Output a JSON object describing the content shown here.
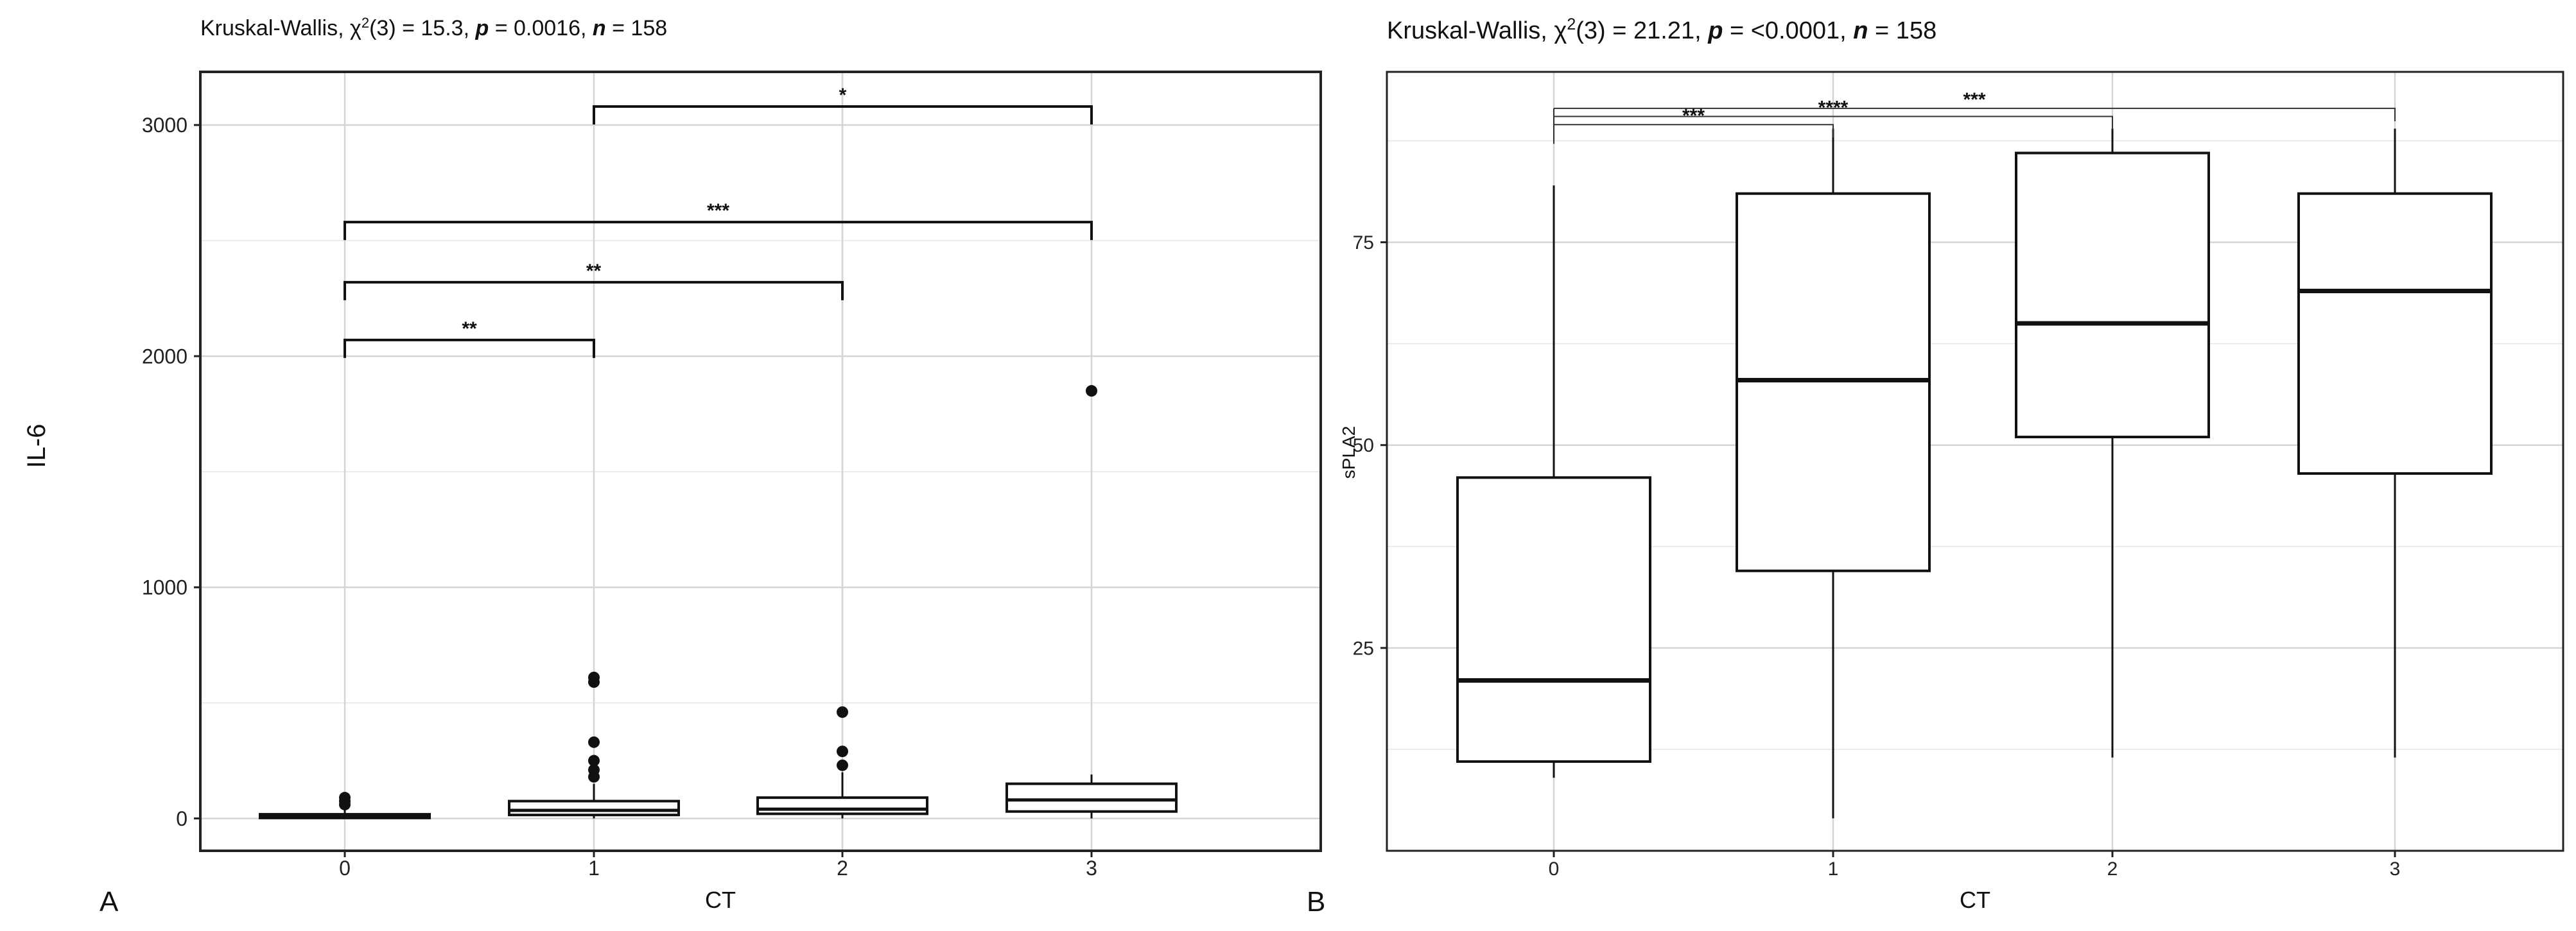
{
  "chart_data": [
    {
      "type": "box",
      "panel_label": "A",
      "title": {
        "prefix": "Kruskal-Wallis, χ",
        "sup": "2",
        "middle": "(3) = 15.3, ",
        "p_sym": "p",
        "p_val": " = 0.0016, ",
        "n_sym": "n",
        "n_val": " = 158"
      },
      "xlabel": "CT",
      "ylabel": "IL-6",
      "categories": [
        "0",
        "1",
        "2",
        "3"
      ],
      "ylim": [
        -140,
        3230
      ],
      "yticks": [
        0,
        1000,
        2000,
        3000
      ],
      "yticklabels": [
        "0",
        "1000",
        "2000",
        "3000"
      ],
      "grid": true,
      "boxes": [
        {
          "category": "0",
          "min": 0,
          "q1": 2,
          "median": 8,
          "q3": 18,
          "max": 40,
          "outliers": [
            60,
            75,
            90
          ]
        },
        {
          "category": "1",
          "min": 0,
          "q1": 15,
          "median": 35,
          "q3": 75,
          "max": 150,
          "outliers": [
            180,
            210,
            250,
            330,
            590,
            610
          ]
        },
        {
          "category": "2",
          "min": 0,
          "q1": 20,
          "median": 40,
          "q3": 90,
          "max": 200,
          "outliers": [
            230,
            290,
            460
          ]
        },
        {
          "category": "3",
          "min": 0,
          "q1": 30,
          "median": 80,
          "q3": 150,
          "max": 190,
          "outliers": [
            1850
          ]
        }
      ],
      "brackets": [
        {
          "from": "0",
          "to": "1",
          "y": 2070,
          "label": "**"
        },
        {
          "from": "0",
          "to": "2",
          "y": 2320,
          "label": "**"
        },
        {
          "from": "0",
          "to": "3",
          "y": 2580,
          "label": "***"
        },
        {
          "from": "1",
          "to": "3",
          "y": 3080,
          "label": "*"
        }
      ]
    },
    {
      "type": "box",
      "panel_label": "B",
      "title": {
        "prefix": "Kruskal-Wallis, χ",
        "sup": "2",
        "middle": "(3) = 21.21, ",
        "p_sym": "p",
        "p_val": " = <0.0001, ",
        "n_sym": "n",
        "n_val": " = 158"
      },
      "xlabel": "CT",
      "ylabel": "sPLA2",
      "categories": [
        "0",
        "1",
        "2",
        "3"
      ],
      "ylim": [
        0,
        96
      ],
      "yticks": [
        25,
        50,
        75
      ],
      "yticklabels": [
        "25",
        "50",
        "75"
      ],
      "grid": true,
      "boxes": [
        {
          "category": "0",
          "min": 9,
          "q1": 11,
          "median": 21,
          "q3": 46,
          "max": 82
        },
        {
          "category": "1",
          "min": 4,
          "q1": 34.5,
          "median": 58,
          "q3": 81,
          "max": 89
        },
        {
          "category": "2",
          "min": 11.5,
          "q1": 51,
          "median": 65,
          "q3": 86,
          "max": 89
        },
        {
          "category": "3",
          "min": 11.5,
          "q1": 46.5,
          "median": 69,
          "q3": 81,
          "max": 89
        }
      ],
      "brackets": [
        {
          "from": "0",
          "to": "1",
          "y": 89.5,
          "label": "***"
        },
        {
          "from": "0",
          "to": "2",
          "y": 90.5,
          "label": "****"
        },
        {
          "from": "0",
          "to": "3",
          "y": 91.5,
          "label": "***"
        }
      ]
    }
  ]
}
